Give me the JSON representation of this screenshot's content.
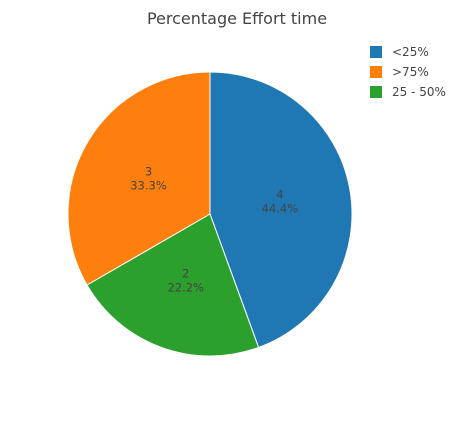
{
  "chart_data": {
    "type": "pie",
    "title": "Percentage Effort time",
    "slices": [
      {
        "label": "<25%",
        "value": 4,
        "percent": "44.4%",
        "color": "#1f77b4"
      },
      {
        "label": "25 - 50%",
        "value": 2,
        "percent": "22.2%",
        "color": "#2ca02c"
      },
      {
        "label": ">75%",
        "value": 3,
        "percent": "33.3%",
        "color": "#ff7f0e"
      }
    ],
    "legend": {
      "placement": "top-right",
      "items": [
        {
          "label": "<25%",
          "color": "#1f77b4"
        },
        {
          "label": ">75%",
          "color": "#ff7f0e"
        },
        {
          "label": "25 - 50%",
          "color": "#2ca02c"
        }
      ]
    }
  }
}
